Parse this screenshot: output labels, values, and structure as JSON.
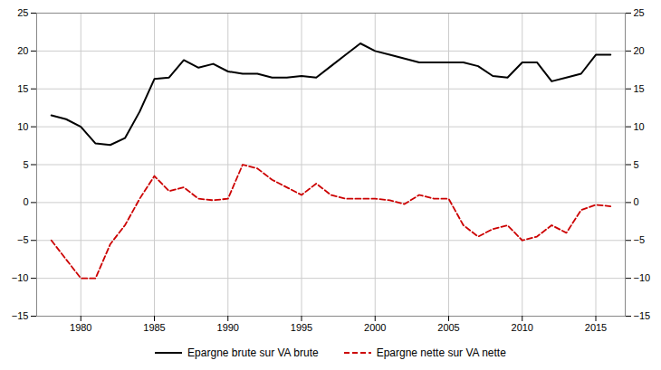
{
  "chart_data": {
    "type": "line",
    "x": [
      1978,
      1979,
      1980,
      1981,
      1982,
      1983,
      1984,
      1985,
      1986,
      1987,
      1988,
      1989,
      1990,
      1991,
      1992,
      1993,
      1994,
      1995,
      1996,
      1997,
      1998,
      1999,
      2000,
      2001,
      2002,
      2003,
      2004,
      2005,
      2006,
      2007,
      2008,
      2009,
      2010,
      2011,
      2012,
      2013,
      2014,
      2015,
      2016
    ],
    "series": [
      {
        "name": "Epargne brute sur VA brute",
        "color": "#000000",
        "line_style": "solid",
        "values": [
          11.5,
          11.0,
          10.0,
          7.8,
          7.6,
          8.5,
          12.0,
          16.3,
          16.5,
          18.8,
          17.8,
          18.3,
          17.3,
          17.0,
          17.0,
          16.5,
          16.5,
          16.7,
          16.5,
          18.0,
          19.5,
          21.0,
          20.0,
          19.5,
          19.0,
          18.5,
          18.5,
          18.5,
          18.5,
          18.0,
          16.7,
          16.5,
          18.5,
          18.5,
          16.0,
          16.5,
          17.0,
          19.5,
          19.5
        ]
      },
      {
        "name": "Epargne nette sur VA nette",
        "color": "#cc0000",
        "line_style": "dashed",
        "values": [
          -5.0,
          -7.5,
          -10.0,
          -10.0,
          -5.5,
          -3.0,
          0.5,
          3.5,
          1.5,
          2.0,
          0.5,
          0.3,
          0.5,
          5.0,
          4.5,
          3.0,
          2.0,
          1.0,
          2.5,
          1.0,
          0.5,
          0.5,
          0.5,
          0.3,
          -0.2,
          1.0,
          0.5,
          0.5,
          -3.0,
          -4.5,
          -3.5,
          -3.0,
          -5.0,
          -4.5,
          -3.0,
          -4.0,
          -1.0,
          -0.3,
          -0.5
        ]
      }
    ],
    "xlim": [
      1977,
      2017
    ],
    "xticks": [
      1980,
      1985,
      1990,
      1995,
      2000,
      2005,
      2010,
      2015
    ],
    "ylim": [
      -15,
      25
    ],
    "yticks": [
      -15,
      -10,
      -5,
      0,
      5,
      10,
      15,
      20,
      25
    ],
    "y2lim": [
      -15,
      25
    ],
    "y2ticks": [
      -15,
      -10,
      -5,
      0,
      5,
      10,
      15,
      20,
      25
    ],
    "grid": true,
    "legend": "lower center"
  }
}
